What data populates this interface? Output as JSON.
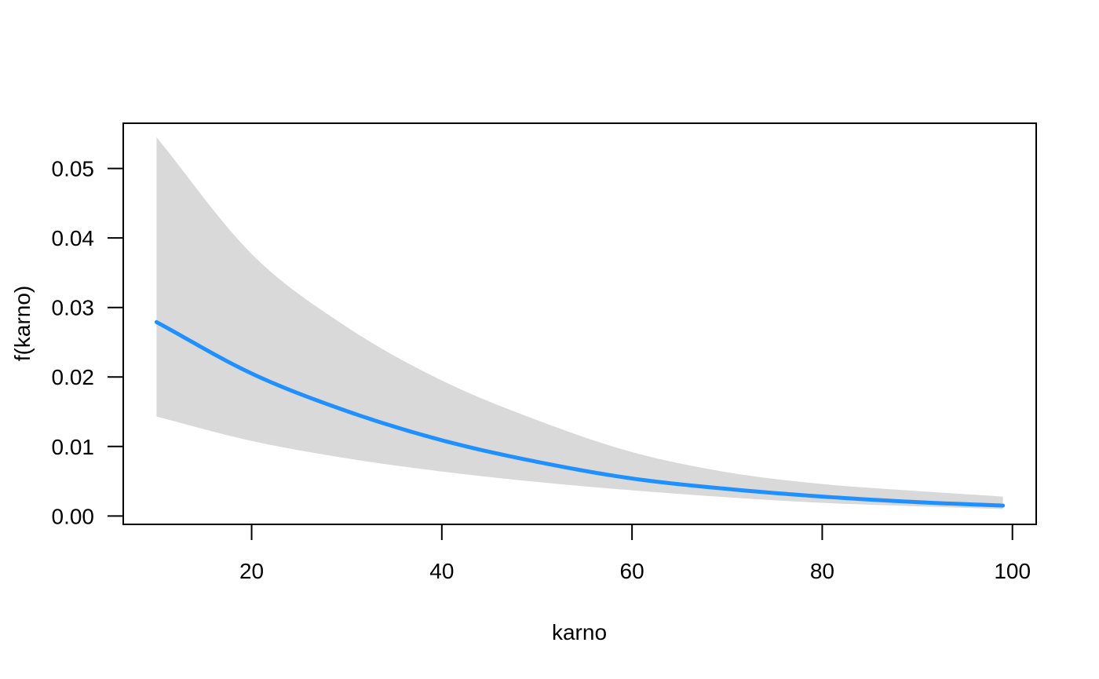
{
  "chart_data": {
    "type": "line",
    "title": "",
    "xlabel": "karno",
    "ylabel": "f(karno)",
    "xlim": [
      6.5,
      102.5
    ],
    "ylim": [
      -0.0012,
      0.0565
    ],
    "x_ticks": [
      20,
      40,
      60,
      80,
      100
    ],
    "x_tick_labels": [
      "20",
      "40",
      "60",
      "80",
      "100"
    ],
    "y_ticks": [
      0.0,
      0.01,
      0.02,
      0.03,
      0.04,
      0.05
    ],
    "y_tick_labels": [
      "0.00",
      "0.01",
      "0.02",
      "0.03",
      "0.04",
      "0.05"
    ],
    "grid": false,
    "legend": "none",
    "line_color": "#1e90ff",
    "band_color": "#d9d9d9",
    "series": [
      {
        "x": [
          10,
          20,
          30,
          40,
          50,
          60,
          70,
          80,
          90,
          99
        ],
        "values": [
          0.0279,
          0.0205,
          0.0151,
          0.0109,
          0.0078,
          0.0054,
          0.0039,
          0.0028,
          0.002,
          0.0015
        ],
        "lower": [
          0.0143,
          0.0108,
          0.0083,
          0.0064,
          0.0049,
          0.0037,
          0.0027,
          0.0019,
          0.0014,
          0.001
        ],
        "upper": [
          0.0545,
          0.0377,
          0.0272,
          0.0195,
          0.0138,
          0.0092,
          0.0063,
          0.0046,
          0.0036,
          0.0028
        ]
      }
    ]
  }
}
